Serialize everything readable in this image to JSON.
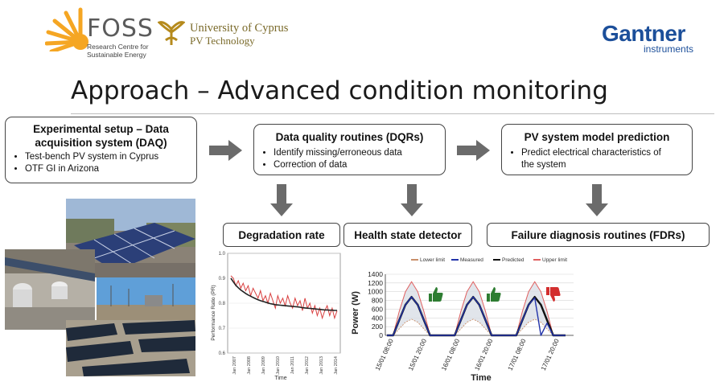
{
  "header": {
    "foss_name": "FOSS",
    "foss_sub_line1": "Research Centre for",
    "foss_sub_line2": "Sustainable Energy",
    "ucy_line1": "University of Cyprus",
    "ucy_line2": "PV Technology",
    "gantner_name": "Gantner",
    "gantner_sub": "instruments"
  },
  "slide": {
    "title": "Approach – Advanced condition monitoring"
  },
  "boxes": {
    "daq": {
      "title_line1": "Experimental setup – Data",
      "title_line2": "acquisition system (DAQ)",
      "bullets": [
        "Test-bench PV system in Cyprus",
        "OTF GI in Arizona"
      ]
    },
    "dqr": {
      "title": "Data quality routines (DQRs)",
      "bullets": [
        "Identify missing/erroneous data",
        "Correction of data"
      ]
    },
    "model": {
      "title": "PV system model prediction",
      "bullet_line1": "Predict electrical characteristics of",
      "bullet_line2": "the system"
    },
    "degradation": "Degradation rate",
    "health": "Health state detector",
    "failure": "Failure diagnosis routines (FDRs)"
  },
  "chart_data": [
    {
      "type": "line",
      "title": "",
      "xlabel": "Time",
      "ylabel": "Performance Ratio (PR)",
      "ylim": [
        0.6,
        1.0
      ],
      "yticks": [
        "1.0",
        "0.9",
        "0.8",
        "0.7",
        "0.6"
      ],
      "xticks": [
        "Jan 2007",
        "Jan 2008",
        "Jan 2009",
        "Jan 2010",
        "Jan 2011",
        "Jan 2012",
        "Jan 2013",
        "Jan 2014"
      ],
      "series": [
        {
          "values": [
            0.91,
            0.9,
            0.87,
            0.89,
            0.86,
            0.88,
            0.85,
            0.87,
            0.83,
            0.86,
            0.84,
            0.82,
            0.85,
            0.81,
            0.83,
            0.8,
            0.84,
            0.81,
            0.78,
            0.83,
            0.8,
            0.82,
            0.79,
            0.83,
            0.8,
            0.78,
            0.82,
            0.79,
            0.81,
            0.77,
            0.82,
            0.78,
            0.8,
            0.76,
            0.79,
            0.75,
            0.78,
            0.74,
            0.77,
            0.79,
            0.75,
            0.78,
            0.74,
            0.77
          ]
        },
        {
          "values": [
            0.9,
            0.885,
            0.872,
            0.862,
            0.853,
            0.846,
            0.839,
            0.833,
            0.828,
            0.823,
            0.818,
            0.814,
            0.81,
            0.807,
            0.804,
            0.801,
            0.798,
            0.796,
            0.794,
            0.793,
            0.792,
            0.791,
            0.79,
            0.789,
            0.788,
            0.787,
            0.786,
            0.785,
            0.784,
            0.782,
            0.781,
            0.78,
            0.779,
            0.778,
            0.777,
            0.776,
            0.775,
            0.774,
            0.773,
            0.773,
            0.772,
            0.772,
            0.771,
            0.771
          ]
        }
      ],
      "colors": {
        "measured": "#d94040",
        "fit": "#222222"
      }
    },
    {
      "type": "line",
      "title": "",
      "xlabel": "Time",
      "ylabel": "Power (W)",
      "ylim": [
        0,
        1400
      ],
      "yticks": [
        "1400",
        "1200",
        "1000",
        "800",
        "600",
        "400",
        "200",
        "0"
      ],
      "xticks": [
        "15/01 08:00",
        "15/01 20:00",
        "16/01 08:00",
        "16/01 20:00",
        "17/01 08:00",
        "17/01 20:00"
      ],
      "legend": [
        "Lower limit",
        "Measured",
        "Predicted",
        "Upper limit"
      ],
      "legend_position": "top",
      "series": [
        {
          "name": "Lower limit",
          "values": [
            0,
            0,
            150,
            300,
            370,
            300,
            150,
            0,
            0,
            0,
            0,
            0,
            150,
            300,
            370,
            300,
            150,
            0,
            0,
            0,
            0,
            0,
            150,
            300,
            370,
            300,
            150,
            0,
            0,
            0
          ]
        },
        {
          "name": "Measured",
          "values": [
            0,
            0,
            350,
            700,
            880,
            700,
            350,
            0,
            0,
            0,
            0,
            0,
            350,
            700,
            880,
            700,
            350,
            0,
            0,
            0,
            0,
            0,
            350,
            700,
            860,
            0,
            280,
            0,
            0,
            0
          ]
        },
        {
          "name": "Predicted",
          "values": [
            0,
            0,
            350,
            700,
            880,
            700,
            350,
            0,
            0,
            0,
            0,
            0,
            350,
            700,
            880,
            700,
            350,
            0,
            0,
            0,
            0,
            0,
            350,
            700,
            880,
            700,
            350,
            0,
            0,
            0
          ]
        },
        {
          "name": "Upper limit",
          "values": [
            0,
            0,
            550,
            1000,
            1230,
            1000,
            550,
            0,
            0,
            0,
            0,
            0,
            550,
            1000,
            1230,
            1000,
            550,
            0,
            0,
            0,
            0,
            0,
            550,
            1000,
            1230,
            1000,
            550,
            0,
            0,
            0
          ]
        }
      ],
      "colors": {
        "lower": "#c98f6a",
        "measured": "#2233aa",
        "predicted": "#111111",
        "upper": "#e06060",
        "band": "#d9dee6"
      }
    }
  ],
  "status_icons": [
    "thumbs-up-icon",
    "thumbs-up-icon",
    "thumbs-down-icon"
  ],
  "colors": {
    "arrow": "#6b6b6b",
    "foss_orange": "#f5a623",
    "ucy_gold": "#b58a1c",
    "gantner_blue": "#1c4f9a",
    "thumb_green": "#2e7d32",
    "thumb_red": "#d32f2f"
  }
}
